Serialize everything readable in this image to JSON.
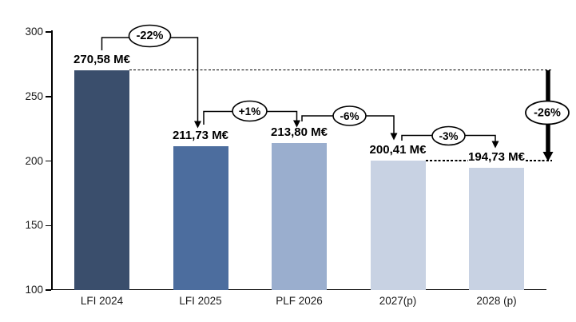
{
  "chart_data": {
    "type": "bar",
    "title": "",
    "unit": "M€",
    "categories": [
      "LFI 2024",
      "LFI 2025",
      "PLF 2026",
      "2027(p)",
      "2028 (p)"
    ],
    "values": [
      270.58,
      211.73,
      213.8,
      200.41,
      194.73
    ],
    "value_labels": [
      "270,58 M€",
      "211,73 M€",
      "213,80 M€",
      "200,41 M€",
      "194,73 M€"
    ],
    "bar_colors": [
      "#3A4E6C",
      "#4C6D9E",
      "#9AAECE",
      "#C8D2E3",
      "#C8D2E3"
    ],
    "ylim": [
      100,
      300
    ],
    "yticks": [
      300,
      250,
      200,
      150,
      100
    ],
    "grid": false,
    "legend": "none",
    "annotations": {
      "pairwise": [
        {
          "label": "-22%",
          "from_index": 0,
          "to_index": 1
        },
        {
          "label": "+1%",
          "from_index": 1,
          "to_index": 2
        },
        {
          "label": "-6%",
          "from_index": 2,
          "to_index": 3
        },
        {
          "label": "-3%",
          "from_index": 3,
          "to_index": 4
        }
      ],
      "overall": {
        "label": "-26%",
        "from_index": 0,
        "to_index": 3
      }
    },
    "reference_lines": [
      {
        "value": 270.58,
        "style": "dotted",
        "start_at_bar": 0
      },
      {
        "value": 200.41,
        "style": "dotted",
        "start_at_bar": 3
      }
    ],
    "colors": {
      "axis": "#000000",
      "text": "#1A1A1A"
    }
  }
}
